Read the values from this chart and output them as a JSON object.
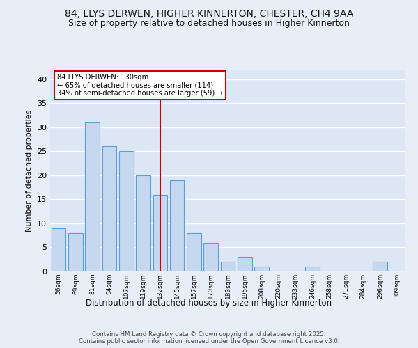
{
  "title": "84, LLYS DERWEN, HIGHER KINNERTON, CHESTER, CH4 9AA",
  "subtitle": "Size of property relative to detached houses in Higher Kinnerton",
  "xlabel": "Distribution of detached houses by size in Higher Kinnerton",
  "ylabel": "Number of detached properties",
  "categories": [
    "56sqm",
    "69sqm",
    "81sqm",
    "94sqm",
    "107sqm",
    "119sqm",
    "132sqm",
    "145sqm",
    "157sqm",
    "170sqm",
    "183sqm",
    "195sqm",
    "208sqm",
    "220sqm",
    "233sqm",
    "246sqm",
    "258sqm",
    "271sqm",
    "284sqm",
    "296sqm",
    "309sqm"
  ],
  "values": [
    9,
    8,
    31,
    26,
    25,
    20,
    16,
    19,
    8,
    6,
    2,
    3,
    1,
    0,
    0,
    1,
    0,
    0,
    0,
    2,
    0
  ],
  "bar_color": "#c5d8f0",
  "bar_edge_color": "#5a9fd4",
  "bar_linewidth": 0.8,
  "vline_x": 6,
  "vline_color": "#cc0000",
  "annotation_title": "84 LLYS DERWEN: 130sqm",
  "annotation_line1": "← 65% of detached houses are smaller (114)",
  "annotation_line2": "34% of semi-detached houses are larger (59) →",
  "annotation_box_color": "#ffffff",
  "annotation_box_edge": "#cc0000",
  "ylim": [
    0,
    42
  ],
  "yticks": [
    0,
    5,
    10,
    15,
    20,
    25,
    30,
    35,
    40
  ],
  "background_color": "#e8eef8",
  "plot_bg_color": "#dce6f5",
  "grid_color": "#ffffff",
  "title_fontsize": 10,
  "subtitle_fontsize": 9,
  "footer_line1": "Contains HM Land Registry data © Crown copyright and database right 2025.",
  "footer_line2": "Contains public sector information licensed under the Open Government Licence v3.0."
}
